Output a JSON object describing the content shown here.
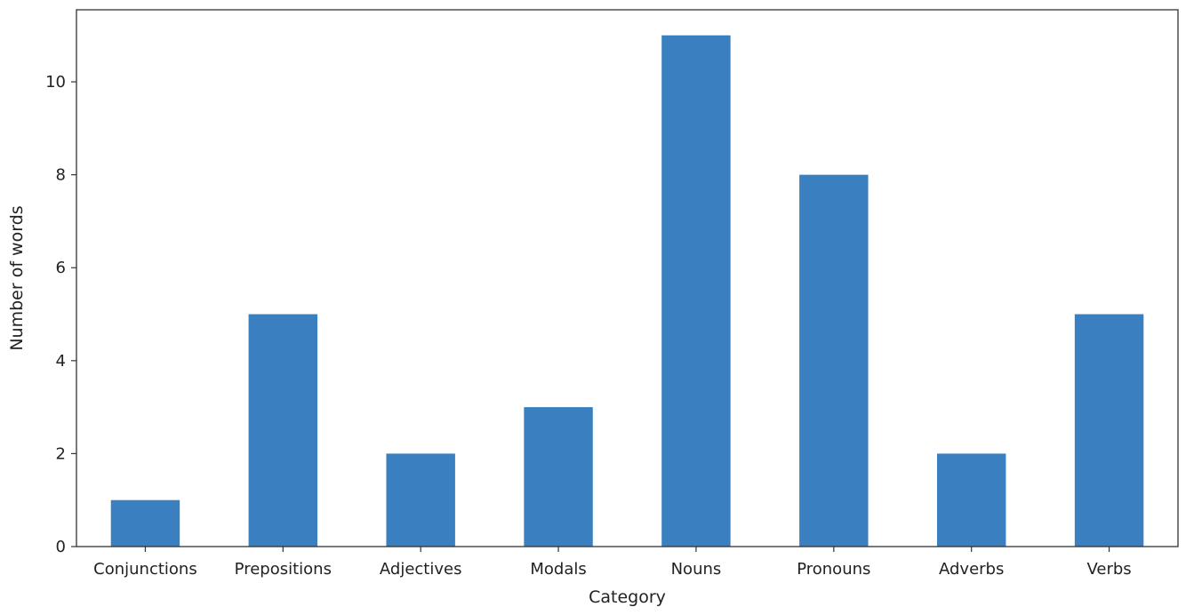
{
  "chart_data": {
    "type": "bar",
    "categories": [
      "Conjunctions",
      "Prepositions",
      "Adjectives",
      "Modals",
      "Nouns",
      "Pronouns",
      "Adverbs",
      "Verbs"
    ],
    "values": [
      1,
      5,
      2,
      3,
      11,
      8,
      2,
      5
    ],
    "xlabel": "Category",
    "ylabel": "Number of words",
    "ylim": [
      0,
      11.55
    ],
    "yticks": [
      0,
      2,
      4,
      6,
      8,
      10
    ],
    "grid": false,
    "bar_color": "#3a80c0"
  }
}
